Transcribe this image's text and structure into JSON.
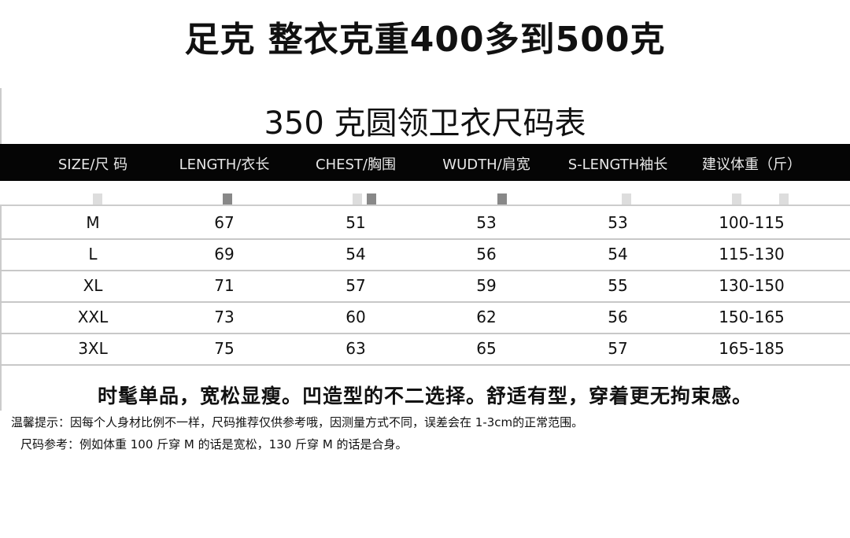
{
  "title": "足克 整衣克重400多到500克",
  "subtitle": "350 克圆领卫衣尺码表",
  "table": {
    "headers": [
      "SIZE/尺 码",
      "LENGTH/衣长",
      "CHEST/胸围",
      "WUDTH/肩宽",
      "S-LENGTH袖长",
      "建议体重（斤）"
    ],
    "rows": [
      [
        "M",
        "67",
        "51",
        "53",
        "53",
        "100-115"
      ],
      [
        "L",
        "69",
        "54",
        "56",
        "54",
        "115-130"
      ],
      [
        "XL",
        "71",
        "57",
        "59",
        "55",
        "130-150"
      ],
      [
        "XXL",
        "73",
        "60",
        "62",
        "56",
        "150-165"
      ],
      [
        "3XL",
        "75",
        "63",
        "65",
        "57",
        "165-185"
      ]
    ]
  },
  "slogan": "时髦单品，宽松显瘦。凹造型的不二选择。舒适有型，穿着更无拘束感。",
  "note_tip": "温馨提示：因每个人身材比例不一样，尺码推荐仅供参考哦，因测量方式不同，误差会在 1-3cm的正常范围。",
  "note_reference": "尺码参考：例如体重 100 斤穿 M 的话是宽松，130 斤穿 M 的话是合身。",
  "colors": {
    "header_band": "#050505",
    "row_divider": "#c8c8c8"
  }
}
